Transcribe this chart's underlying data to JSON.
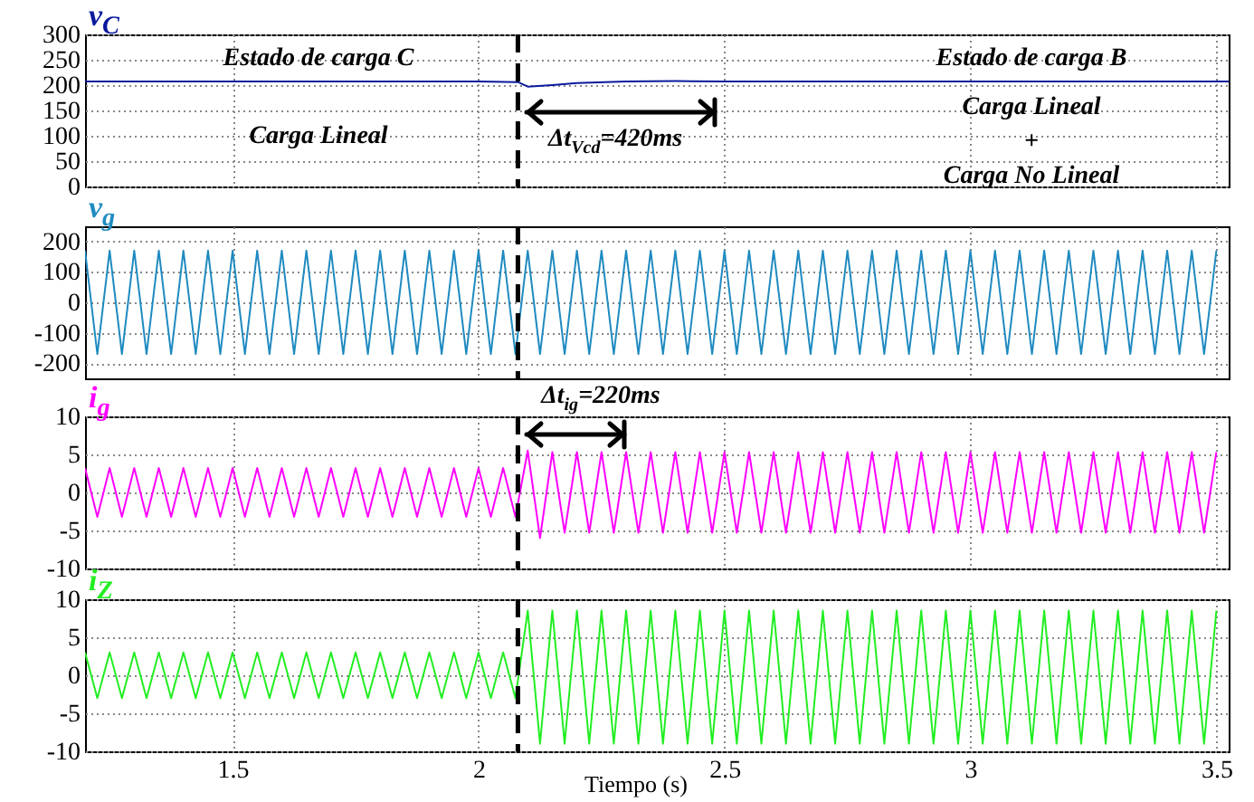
{
  "chart_data": [
    {
      "type": "line",
      "title": "v$_{C}$",
      "xlim": [
        1.2,
        3.525
      ],
      "xticks": [
        1.5,
        2,
        2.5,
        3,
        3.5
      ],
      "ylim": [
        0,
        300
      ],
      "yticks": [
        0,
        50,
        100,
        150,
        200,
        250,
        300
      ],
      "grid": true,
      "tick_labels": "y",
      "series": [
        {
          "color": "#0a1a9c",
          "x": [
            1.2,
            1.6,
            2.0,
            2.08,
            2.1,
            2.15,
            2.2,
            2.3,
            2.4,
            2.5,
            3.0,
            3.525
          ],
          "values": [
            207,
            207,
            207,
            206,
            197,
            200,
            204,
            207,
            208,
            207,
            207,
            207
          ]
        }
      ],
      "ref_lines": [
        {
          "axis": "x",
          "value": 2.08,
          "color": "#000000",
          "line_style": "dashed"
        }
      ],
      "annotations": [
        "Estado de carga C",
        "Carga Lineal",
        "Estado de carga B",
        "Carga Lineal",
        "+",
        "Carga No Lineal",
        "Δt$_{Vcd}$=420ms"
      ]
    },
    {
      "type": "line",
      "title": "v$_{g}$",
      "xlim": [
        1.2,
        3.525
      ],
      "xticks": [
        1.5,
        2,
        2.5,
        3,
        3.5
      ],
      "ylim": [
        -250,
        250
      ],
      "yticks": [
        -200,
        -100,
        0,
        100,
        200
      ],
      "grid": true,
      "tick_labels": "y",
      "x": [
        1.2,
        1.225,
        1.25,
        1.275,
        1.3,
        1.325,
        1.35,
        1.375,
        1.4,
        1.425,
        1.45,
        1.475,
        1.5,
        1.525,
        1.55,
        1.575,
        1.6,
        1.625,
        1.65,
        1.675,
        1.7,
        1.725,
        1.75,
        1.775,
        1.8,
        1.825,
        1.85,
        1.875,
        1.9,
        1.925,
        1.95,
        1.975,
        2,
        2.025,
        2.05,
        2.075,
        2.1,
        2.125,
        2.15,
        2.175,
        2.2,
        2.225,
        2.25,
        2.275,
        2.3,
        2.325,
        2.35,
        2.375,
        2.4,
        2.425,
        2.45,
        2.475,
        2.5,
        2.525,
        2.55,
        2.575,
        2.6,
        2.625,
        2.65,
        2.675,
        2.7,
        2.725,
        2.75,
        2.775,
        2.8,
        2.825,
        2.85,
        2.875,
        2.9,
        2.925,
        2.95,
        2.975,
        3,
        3.025,
        3.05,
        3.075,
        3.1,
        3.125,
        3.15,
        3.175,
        3.2,
        3.225,
        3.25,
        3.275,
        3.3,
        3.325,
        3.35,
        3.375,
        3.4,
        3.425,
        3.45,
        3.475,
        3.5
      ],
      "series": [
        {
          "color": "#1f8ac0",
          "values": [
            170,
            -170,
            170,
            -170,
            170,
            -170,
            170,
            -170,
            170,
            -170,
            170,
            -170,
            170,
            -170,
            170,
            -170,
            170,
            -170,
            170,
            -170,
            170,
            -170,
            170,
            -170,
            170,
            -170,
            170,
            -170,
            170,
            -170,
            170,
            -170,
            170,
            -170,
            170,
            -170,
            170,
            -170,
            170,
            -170,
            170,
            -170,
            170,
            -170,
            170,
            -170,
            170,
            -170,
            170,
            -170,
            170,
            -170,
            170,
            -170,
            170,
            -170,
            170,
            -170,
            170,
            -170,
            170,
            -170,
            170,
            -170,
            170,
            -170,
            170,
            -170,
            170,
            -170,
            170,
            -170,
            170,
            -170,
            170,
            -170,
            170,
            -170,
            170,
            -170,
            170,
            -170,
            170,
            -170,
            170,
            -170,
            170,
            -170,
            170,
            -170,
            170,
            -170,
            170
          ]
        }
      ],
      "ref_lines": [
        {
          "axis": "x",
          "value": 2.08,
          "color": "#000000",
          "line_style": "dashed"
        }
      ]
    },
    {
      "type": "line",
      "title": "i$_{g}$",
      "xlim": [
        1.2,
        3.525
      ],
      "xticks": [
        1.5,
        2,
        2.5,
        3,
        3.5
      ],
      "ylim": [
        -10,
        10
      ],
      "yticks": [
        -10,
        -5,
        0,
        5,
        10
      ],
      "grid": true,
      "tick_labels": "y",
      "x": [
        1.2,
        1.225,
        1.25,
        1.275,
        1.3,
        1.325,
        1.35,
        1.375,
        1.4,
        1.425,
        1.45,
        1.475,
        1.5,
        1.525,
        1.55,
        1.575,
        1.6,
        1.625,
        1.65,
        1.675,
        1.7,
        1.725,
        1.75,
        1.775,
        1.8,
        1.825,
        1.85,
        1.875,
        1.9,
        1.925,
        1.95,
        1.975,
        2,
        2.025,
        2.05,
        2.075,
        2.1,
        2.125,
        2.15,
        2.175,
        2.2,
        2.225,
        2.25,
        2.275,
        2.3,
        2.325,
        2.35,
        2.375,
        2.4,
        2.425,
        2.45,
        2.475,
        2.5,
        2.525,
        2.55,
        2.575,
        2.6,
        2.625,
        2.65,
        2.675,
        2.7,
        2.725,
        2.75,
        2.775,
        2.8,
        2.825,
        2.85,
        2.875,
        2.9,
        2.925,
        2.95,
        2.975,
        3,
        3.025,
        3.05,
        3.075,
        3.1,
        3.125,
        3.15,
        3.175,
        3.2,
        3.225,
        3.25,
        3.275,
        3.3,
        3.325,
        3.35,
        3.375,
        3.4,
        3.425,
        3.45,
        3.475,
        3.5
      ],
      "series": [
        {
          "color": "#ff00ff",
          "values": [
            3.2,
            -3.2,
            3.2,
            -3.2,
            3.2,
            -3.2,
            3.2,
            -3.2,
            3.2,
            -3.2,
            3.2,
            -3.2,
            3.2,
            -3.2,
            3.2,
            -3.2,
            3.2,
            -3.2,
            3.2,
            -3.2,
            3.2,
            -3.2,
            3.2,
            -3.2,
            3.2,
            -3.2,
            3.2,
            -3.2,
            3.2,
            -3.2,
            3.2,
            -3.2,
            3.2,
            -3.2,
            3.2,
            -3.2,
            5.5,
            -6,
            5.3,
            -5.3,
            5.3,
            -5.3,
            5.3,
            -5.3,
            5.3,
            -5.3,
            5.3,
            -5.3,
            5.3,
            -5.3,
            5.3,
            -5.3,
            5.3,
            -5.3,
            5.3,
            -5.3,
            5.3,
            -5.3,
            5.3,
            -5.3,
            5.3,
            -5.3,
            5.3,
            -5.3,
            5.3,
            -5.3,
            5.3,
            -5.3,
            5.3,
            -5.3,
            5.3,
            -5.3,
            5.3,
            -5.3,
            5.3,
            -5.3,
            5.3,
            -5.3,
            5.3,
            -5.3,
            5.3,
            -5.3,
            5.3,
            -5.3,
            5.3,
            -5.3,
            5.3,
            -5.3,
            5.3,
            -5.3,
            5.3,
            -5.3,
            5.3
          ]
        }
      ],
      "ref_lines": [
        {
          "axis": "x",
          "value": 2.08,
          "color": "#000000",
          "line_style": "dashed"
        }
      ],
      "annotations": [
        "Δt$_{ig}$=220ms"
      ]
    },
    {
      "type": "line",
      "title": "i$_{Z}$",
      "xlabel": "Tiempo (s)",
      "xlim": [
        1.2,
        3.525
      ],
      "xticks": [
        1.5,
        2,
        2.5,
        3,
        3.5
      ],
      "ylim": [
        -10,
        10
      ],
      "yticks": [
        -10,
        -5,
        0,
        5,
        10
      ],
      "grid": true,
      "x": [
        1.2,
        1.225,
        1.25,
        1.275,
        1.3,
        1.325,
        1.35,
        1.375,
        1.4,
        1.425,
        1.45,
        1.475,
        1.5,
        1.525,
        1.55,
        1.575,
        1.6,
        1.625,
        1.65,
        1.675,
        1.7,
        1.725,
        1.75,
        1.775,
        1.8,
        1.825,
        1.85,
        1.875,
        1.9,
        1.925,
        1.95,
        1.975,
        2,
        2.025,
        2.05,
        2.075,
        2.1,
        2.125,
        2.15,
        2.175,
        2.2,
        2.225,
        2.25,
        2.275,
        2.3,
        2.325,
        2.35,
        2.375,
        2.4,
        2.425,
        2.45,
        2.475,
        2.5,
        2.525,
        2.55,
        2.575,
        2.6,
        2.625,
        2.65,
        2.675,
        2.7,
        2.725,
        2.75,
        2.775,
        2.8,
        2.825,
        2.85,
        2.875,
        2.9,
        2.925,
        2.95,
        2.975,
        3,
        3.025,
        3.05,
        3.075,
        3.1,
        3.125,
        3.15,
        3.175,
        3.2,
        3.225,
        3.25,
        3.275,
        3.3,
        3.325,
        3.35,
        3.375,
        3.4,
        3.425,
        3.45,
        3.475,
        3.5
      ],
      "series": [
        {
          "color": "#22ee22",
          "values": [
            3,
            -3,
            3,
            -3,
            3,
            -3,
            3,
            -3,
            3,
            -3,
            3,
            -3,
            3,
            -3,
            3,
            -3,
            3,
            -3,
            3,
            -3,
            3,
            -3,
            3,
            -3,
            3,
            -3,
            3,
            -3,
            3,
            -3,
            3,
            -3,
            3,
            -3,
            3,
            -3,
            8.5,
            -9,
            8.5,
            -9,
            8.5,
            -9,
            8.5,
            -9,
            8.5,
            -9,
            8.5,
            -9,
            8.5,
            -9,
            8.5,
            -9,
            8.5,
            -9,
            8.5,
            -9,
            8.5,
            -9,
            8.5,
            -9,
            8.5,
            -9,
            8.5,
            -9,
            8.5,
            -9,
            8.5,
            -9,
            8.5,
            -9,
            8.5,
            -9,
            8.5,
            -9,
            8.5,
            -9,
            8.5,
            -9,
            8.5,
            -9,
            8.5,
            -9,
            8.5,
            -9,
            8.5,
            -9,
            8.5,
            -9,
            8.5,
            -9,
            8.5,
            -9,
            8.5
          ]
        }
      ],
      "ref_lines": [
        {
          "axis": "x",
          "value": 2.08,
          "color": "#000000",
          "line_style": "dashed"
        }
      ]
    }
  ]
}
